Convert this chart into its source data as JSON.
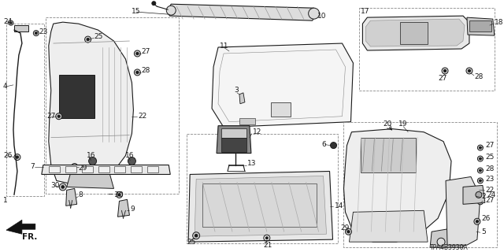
{
  "bg_color": "#ffffff",
  "diagram_code": "TPA4B3930A",
  "fig_width": 6.4,
  "fig_height": 3.2,
  "dpi": 100,
  "dark": "#1a1a1a",
  "gray": "#888888",
  "light_gray": "#cccccc",
  "very_light": "#f0f0f0"
}
